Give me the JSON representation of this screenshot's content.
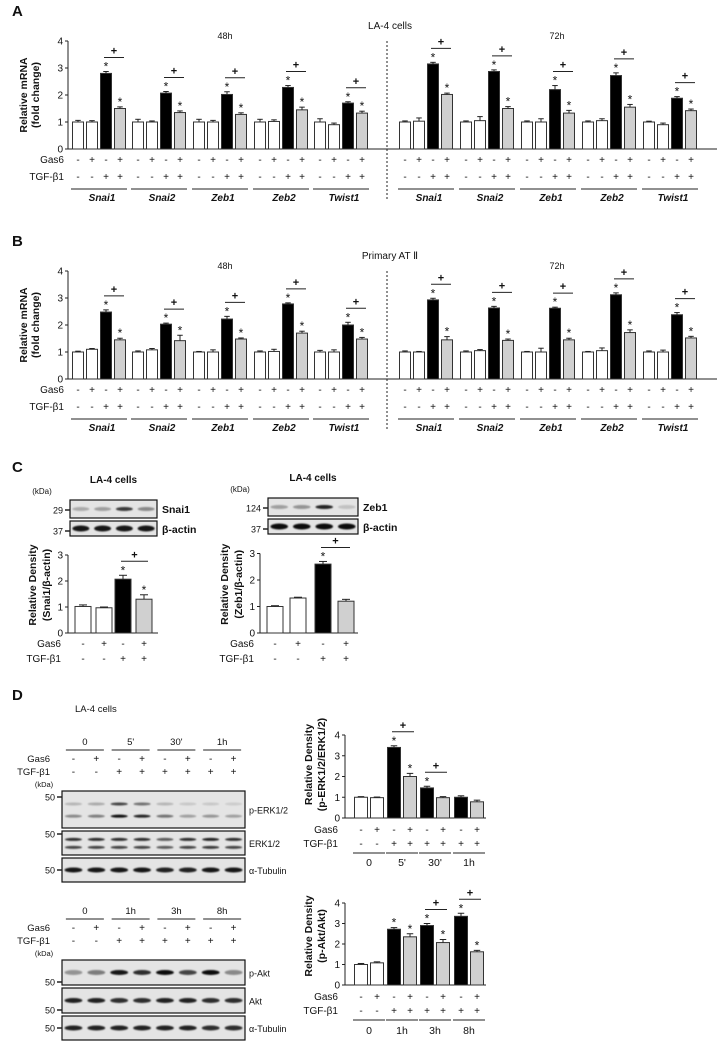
{
  "panels": {
    "A": {
      "label": "A",
      "title": "LA-4 cells"
    },
    "B": {
      "label": "B",
      "title": "Primary AT Ⅱ"
    },
    "C": {
      "label": "C"
    },
    "D": {
      "label": "D",
      "title": "LA-4 cells"
    }
  },
  "colors": {
    "untreated": "#ffffff",
    "tgf": "#000000",
    "tgf_gas6": "#d0d0d0"
  },
  "blots": {
    "C_snai1": {
      "title": "LA-4 cells",
      "kda": "(kDa)",
      "rows": [
        {
          "label": "Snai1",
          "marker": "29"
        },
        {
          "label": "β-actin",
          "marker": "37"
        }
      ]
    },
    "C_zeb1": {
      "title": "LA-4 cells",
      "kda": "(kDa)",
      "rows": [
        {
          "label": "Zeb1",
          "marker": "124"
        },
        {
          "label": "β-actin",
          "marker": "37"
        }
      ]
    },
    "D_erk": {
      "kda": "(kDa)",
      "times": [
        "0",
        "5'",
        "30'",
        "1h"
      ],
      "gas6": [
        "-",
        "+",
        "-",
        "+",
        "-",
        "+",
        "-",
        "+"
      ],
      "tgf": [
        "-",
        "-",
        "+",
        "+",
        "+",
        "+",
        "+",
        "+"
      ],
      "row_labels": [
        "Gas6",
        "TGF-β1"
      ],
      "rows": [
        {
          "label": "p-ERK1/2",
          "marker": "50"
        },
        {
          "label": "ERK1/2",
          "marker": "50"
        },
        {
          "label": "α-Tubulin",
          "marker": "50"
        }
      ]
    },
    "D_akt": {
      "kda": "(kDa)",
      "times": [
        "0",
        "1h",
        "3h",
        "8h"
      ],
      "gas6": [
        "-",
        "+",
        "-",
        "+",
        "-",
        "+",
        "-",
        "+"
      ],
      "tgf": [
        "-",
        "-",
        "+",
        "+",
        "+",
        "+",
        "+",
        "+"
      ],
      "row_labels": [
        "Gas6",
        "TGF-β1"
      ],
      "rows": [
        {
          "label": "p-Akt",
          "marker": "50"
        },
        {
          "label": "Akt",
          "marker": "50"
        },
        {
          "label": "α-Tubulin",
          "marker": "50"
        }
      ]
    }
  },
  "chart_data": [
    {
      "id": "A",
      "type": "bar",
      "title": "LA-4 cells",
      "ylabel": [
        "Relative mRNA",
        "(fold change)"
      ],
      "ylim": [
        0,
        4
      ],
      "yticks": [
        "0",
        "1",
        "2",
        "3",
        "4"
      ],
      "row_labels": [
        "Gas6",
        "TGF-β1"
      ],
      "gas6": [
        "-",
        "+",
        "-",
        "+"
      ],
      "tgf": [
        "-",
        "-",
        "+",
        "+"
      ],
      "star": "*",
      "plus": "+",
      "timepoints": [
        {
          "label": "48h",
          "groups": [
            {
              "gene": "Snai1",
              "values": [
                1.0,
                1.0,
                2.8,
                1.5
              ],
              "errors": [
                0.06,
                0.05,
                0.07,
                0.06
              ],
              "stars": [
                2,
                3
              ],
              "plus": [
                [
                  2,
                  3
                ]
              ]
            },
            {
              "gene": "Snai2",
              "values": [
                1.0,
                1.0,
                2.07,
                1.35
              ],
              "errors": [
                0.1,
                0.04,
                0.06,
                0.06
              ],
              "stars": [
                2,
                3
              ],
              "plus": [
                [
                  2,
                  3
                ]
              ]
            },
            {
              "gene": "Zeb1",
              "values": [
                1.0,
                1.0,
                2.02,
                1.28
              ],
              "errors": [
                0.1,
                0.06,
                0.1,
                0.06
              ],
              "stars": [
                2,
                3
              ],
              "plus": [
                [
                  2,
                  3
                ]
              ]
            },
            {
              "gene": "Zeb2",
              "values": [
                1.0,
                1.02,
                2.28,
                1.45
              ],
              "errors": [
                0.1,
                0.06,
                0.07,
                0.1
              ],
              "stars": [
                2,
                3
              ],
              "plus": [
                [
                  2,
                  3
                ]
              ]
            },
            {
              "gene": "Twist1",
              "values": [
                1.0,
                0.9,
                1.7,
                1.33
              ],
              "errors": [
                0.12,
                0.06,
                0.05,
                0.07
              ],
              "stars": [
                2,
                3
              ],
              "plus": [
                [
                  2,
                  3
                ]
              ]
            }
          ]
        },
        {
          "label": "72h",
          "groups": [
            {
              "gene": "Snai1",
              "values": [
                1.0,
                1.03,
                3.15,
                2.02
              ],
              "errors": [
                0.04,
                0.12,
                0.06,
                0.05
              ],
              "stars": [
                2,
                3
              ],
              "plus": [
                [
                  2,
                  3
                ]
              ]
            },
            {
              "gene": "Snai2",
              "values": [
                1.0,
                1.05,
                2.87,
                1.5
              ],
              "errors": [
                0.04,
                0.15,
                0.06,
                0.07
              ],
              "stars": [
                2,
                3
              ],
              "plus": [
                [
                  2,
                  3
                ]
              ]
            },
            {
              "gene": "Zeb1",
              "values": [
                1.0,
                1.0,
                2.2,
                1.33
              ],
              "errors": [
                0.04,
                0.12,
                0.15,
                0.1
              ],
              "stars": [
                2,
                3
              ],
              "plus": [
                [
                  2,
                  3
                ]
              ]
            },
            {
              "gene": "Zeb2",
              "values": [
                1.0,
                1.05,
                2.72,
                1.55
              ],
              "errors": [
                0.04,
                0.07,
                0.1,
                0.1
              ],
              "stars": [
                2,
                3
              ],
              "plus": [
                [
                  2,
                  3
                ]
              ]
            },
            {
              "gene": "Twist1",
              "values": [
                1.0,
                0.9,
                1.88,
                1.42
              ],
              "errors": [
                0.03,
                0.06,
                0.06,
                0.06
              ],
              "stars": [
                2,
                3
              ],
              "plus": [
                [
                  2,
                  3
                ]
              ]
            }
          ]
        }
      ]
    },
    {
      "id": "B",
      "type": "bar",
      "title": "Primary AT Ⅱ",
      "ylabel": [
        "Relative mRNA",
        "(fold change)"
      ],
      "ylim": [
        0,
        4
      ],
      "yticks": [
        "0",
        "1",
        "2",
        "3",
        "4"
      ],
      "row_labels": [
        "Gas6",
        "TGF-β1"
      ],
      "gas6": [
        "-",
        "+",
        "-",
        "+"
      ],
      "tgf": [
        "-",
        "-",
        "+",
        "+"
      ],
      "star": "*",
      "plus": "+",
      "timepoints": [
        {
          "label": "48h",
          "groups": [
            {
              "gene": "Snai1",
              "values": [
                1.0,
                1.1,
                2.48,
                1.45
              ],
              "errors": [
                0.03,
                0.03,
                0.08,
                0.06
              ],
              "stars": [
                2,
                3
              ],
              "plus": [
                [
                  2,
                  3
                ]
              ]
            },
            {
              "gene": "Snai2",
              "values": [
                1.0,
                1.08,
                2.03,
                1.42
              ],
              "errors": [
                0.04,
                0.05,
                0.04,
                0.2
              ],
              "stars": [
                2,
                3
              ],
              "plus": [
                [
                  2,
                  3
                ]
              ]
            },
            {
              "gene": "Zeb1",
              "values": [
                1.0,
                1.0,
                2.22,
                1.48
              ],
              "errors": [
                0.02,
                0.08,
                0.1,
                0.04
              ],
              "stars": [
                2,
                3
              ],
              "plus": [
                [
                  2,
                  3
                ]
              ]
            },
            {
              "gene": "Zeb2",
              "values": [
                1.0,
                1.02,
                2.78,
                1.7
              ],
              "errors": [
                0.04,
                0.08,
                0.04,
                0.07
              ],
              "stars": [
                2,
                3
              ],
              "plus": [
                [
                  2,
                  3
                ]
              ]
            },
            {
              "gene": "Twist1",
              "values": [
                1.0,
                1.0,
                2.0,
                1.48
              ],
              "errors": [
                0.06,
                0.08,
                0.1,
                0.06
              ],
              "stars": [
                2,
                3
              ],
              "plus": [
                [
                  2,
                  3
                ]
              ]
            }
          ]
        },
        {
          "label": "72h",
          "groups": [
            {
              "gene": "Snai1",
              "values": [
                1.0,
                1.0,
                2.93,
                1.45
              ],
              "errors": [
                0.04,
                0.02,
                0.06,
                0.12
              ],
              "stars": [
                2,
                3
              ],
              "plus": [
                [
                  2,
                  3
                ]
              ]
            },
            {
              "gene": "Snai2",
              "values": [
                1.0,
                1.05,
                2.63,
                1.43
              ],
              "errors": [
                0.04,
                0.04,
                0.06,
                0.05
              ],
              "stars": [
                2,
                3
              ],
              "plus": [
                [
                  2,
                  3
                ]
              ]
            },
            {
              "gene": "Zeb1",
              "values": [
                1.0,
                1.0,
                2.62,
                1.45
              ],
              "errors": [
                0.02,
                0.14,
                0.04,
                0.06
              ],
              "stars": [
                2,
                3
              ],
              "plus": [
                [
                  2,
                  3
                ]
              ]
            },
            {
              "gene": "Zeb2",
              "values": [
                1.0,
                1.05,
                3.12,
                1.72
              ],
              "errors": [
                0.02,
                0.1,
                0.07,
                0.1
              ],
              "stars": [
                2,
                3
              ],
              "plus": [
                [
                  2,
                  3
                ]
              ]
            },
            {
              "gene": "Twist1",
              "values": [
                1.0,
                1.0,
                2.38,
                1.52
              ],
              "errors": [
                0.04,
                0.07,
                0.08,
                0.06
              ],
              "stars": [
                2,
                3
              ],
              "plus": [
                [
                  2,
                  3
                ]
              ]
            }
          ]
        }
      ]
    },
    {
      "id": "C1",
      "type": "bar",
      "ylabel": [
        "Relative Density",
        "(Snai1/β-actin)"
      ],
      "ylim": [
        0,
        3
      ],
      "yticks": [
        "0",
        "1",
        "2",
        "3"
      ],
      "row_labels": [
        "Gas6",
        "TGF-β1"
      ],
      "gas6": [
        "-",
        "+",
        "-",
        "+"
      ],
      "tgf": [
        "-",
        "-",
        "+",
        "+"
      ],
      "values": [
        1.02,
        0.97,
        2.07,
        1.3
      ],
      "errors": [
        0.06,
        0.03,
        0.15,
        0.17
      ],
      "stars": [
        2,
        3
      ],
      "plus": [
        [
          2,
          3
        ]
      ],
      "star": "*",
      "plus_label": "+"
    },
    {
      "id": "C2",
      "type": "bar",
      "ylabel": [
        "Relative Density",
        "(Zeb1/β-actin)"
      ],
      "ylim": [
        0,
        3
      ],
      "yticks": [
        "0",
        "1",
        "2",
        "3"
      ],
      "row_labels": [
        "Gas6",
        "TGF-β1"
      ],
      "gas6": [
        "-",
        "+",
        "-",
        "+"
      ],
      "tgf": [
        "-",
        "-",
        "+",
        "+"
      ],
      "values": [
        1.0,
        1.32,
        2.6,
        1.2
      ],
      "errors": [
        0.03,
        0.03,
        0.1,
        0.07
      ],
      "stars": [
        2
      ],
      "plus": [
        [
          2,
          3
        ]
      ],
      "star": "*",
      "plus_label": "+"
    },
    {
      "id": "D1",
      "type": "bar",
      "ylabel": [
        "Relative Density",
        "(p-ERK1/2/ERK1/2)"
      ],
      "ylim": [
        0,
        4
      ],
      "yticks": [
        "0",
        "1",
        "2",
        "3",
        "4"
      ],
      "row_labels": [
        "Gas6",
        "TGF-β1"
      ],
      "gas6": [
        "-",
        "+",
        "-",
        "+",
        "-",
        "+",
        "-",
        "+"
      ],
      "tgf": [
        "-",
        "-",
        "+",
        "+",
        "+",
        "+",
        "+",
        "+"
      ],
      "times": [
        "0",
        "5'",
        "30'",
        "1h"
      ],
      "values": [
        1.0,
        0.98,
        3.4,
        2.0,
        1.45,
        0.98,
        1.0,
        0.78
      ],
      "errors": [
        0.03,
        0.03,
        0.08,
        0.15,
        0.08,
        0.05,
        0.07,
        0.08
      ],
      "stars": [
        2,
        3,
        4
      ],
      "plus": [
        [
          2,
          3
        ],
        [
          4,
          5
        ]
      ],
      "star": "*",
      "plus_label": "+"
    },
    {
      "id": "D2",
      "type": "bar",
      "ylabel": [
        "Relative Density",
        "(p-Akt/Akt)"
      ],
      "ylim": [
        0,
        4
      ],
      "yticks": [
        "0",
        "1",
        "2",
        "3",
        "4"
      ],
      "row_labels": [
        "Gas6",
        "TGF-β1"
      ],
      "gas6": [
        "-",
        "+",
        "-",
        "+",
        "-",
        "+",
        "-",
        "+"
      ],
      "tgf": [
        "-",
        "-",
        "+",
        "+",
        "+",
        "+",
        "+",
        "+"
      ],
      "times": [
        "0",
        "1h",
        "3h",
        "8h"
      ],
      "values": [
        1.0,
        1.08,
        2.72,
        2.35,
        2.9,
        2.07,
        3.35,
        1.62
      ],
      "errors": [
        0.05,
        0.05,
        0.08,
        0.15,
        0.1,
        0.15,
        0.15,
        0.07
      ],
      "stars": [
        2,
        3,
        4,
        5,
        6,
        7
      ],
      "plus": [
        [
          4,
          5
        ],
        [
          6,
          7
        ]
      ],
      "star": "*",
      "plus_label": "+"
    }
  ]
}
